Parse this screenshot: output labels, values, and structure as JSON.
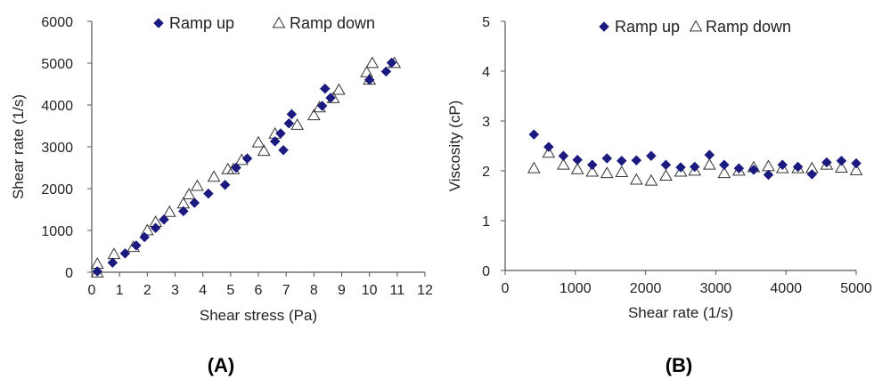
{
  "chart_data": [
    {
      "type": "scatter",
      "panel_label": "(A)",
      "xlabel": "Shear stress (Pa)",
      "ylabel": "Shear rate (1/s)",
      "xlim": [
        0,
        12
      ],
      "ylim": [
        0,
        6000
      ],
      "xticks": [
        "0",
        "1",
        "2",
        "3",
        "4",
        "5",
        "6",
        "7",
        "8",
        "9",
        "10",
        "11",
        "12"
      ],
      "yticks": [
        "0",
        "1000",
        "2000",
        "3000",
        "4000",
        "5000",
        "6000"
      ],
      "grid": false,
      "legend_position": "top",
      "series": [
        {
          "name": "Ramp up",
          "marker": "filled-diamond",
          "color": "#1a1a80",
          "x": [
            0.2,
            0.75,
            1.2,
            1.6,
            1.9,
            2.3,
            2.6,
            3.3,
            3.7,
            4.2,
            4.8,
            5.2,
            5.6,
            6.6,
            6.8,
            6.9,
            7.1,
            7.2,
            8.3,
            8.4,
            8.6,
            10.0,
            10.6,
            10.8
          ],
          "y": [
            20,
            230,
            450,
            640,
            840,
            1060,
            1260,
            1460,
            1660,
            1880,
            2090,
            2500,
            2720,
            3130,
            3320,
            2920,
            3560,
            3780,
            3980,
            4390,
            4170,
            4600,
            4800,
            5010
          ]
        },
        {
          "name": "Ramp down",
          "marker": "open-triangle",
          "color": "#333333",
          "x": [
            0.2,
            0.2,
            0.8,
            1.5,
            2.0,
            2.3,
            2.8,
            3.3,
            3.5,
            3.8,
            4.4,
            4.9,
            5.1,
            5.4,
            6.0,
            6.2,
            6.6,
            7.4,
            8.0,
            8.2,
            8.7,
            8.9,
            9.9,
            10.0,
            10.1,
            10.9
          ],
          "y": [
            200,
            -10,
            430,
            600,
            1000,
            1200,
            1440,
            1640,
            1860,
            2060,
            2280,
            2460,
            2460,
            2680,
            3100,
            2900,
            3310,
            3520,
            3750,
            3940,
            4160,
            4360,
            4780,
            4600,
            5000,
            5000
          ]
        }
      ]
    },
    {
      "type": "scatter",
      "panel_label": "(B)",
      "xlabel": "Shear rate (1/s)",
      "ylabel": "Viscosity (cP)",
      "xlim": [
        0,
        5000
      ],
      "ylim": [
        0,
        5
      ],
      "xticks": [
        "0",
        "1000",
        "2000",
        "3000",
        "4000",
        "5000"
      ],
      "yticks": [
        "0",
        "1",
        "2",
        "3",
        "4",
        "5"
      ],
      "grid": false,
      "legend_position": "top",
      "series": [
        {
          "name": "Ramp up",
          "marker": "filled-diamond",
          "color": "#1a1a80",
          "x": [
            410,
            620,
            830,
            1030,
            1240,
            1450,
            1660,
            1870,
            2080,
            2290,
            2500,
            2700,
            2910,
            3120,
            3330,
            3540,
            3750,
            3950,
            4170,
            4370,
            4580,
            4790,
            5000
          ],
          "y": [
            2.73,
            2.48,
            2.3,
            2.22,
            2.12,
            2.25,
            2.2,
            2.21,
            2.3,
            2.12,
            2.07,
            2.08,
            2.32,
            2.12,
            2.05,
            2.02,
            1.92,
            2.12,
            2.08,
            1.93,
            2.17,
            2.2,
            2.15
          ]
        },
        {
          "name": "Ramp down",
          "marker": "open-triangle",
          "color": "#333333",
          "x": [
            410,
            620,
            830,
            1030,
            1240,
            1450,
            1660,
            1870,
            2080,
            2290,
            2500,
            2700,
            2910,
            3120,
            3330,
            3540,
            3750,
            3950,
            4170,
            4370,
            4580,
            4790,
            5000
          ],
          "y": [
            2.05,
            2.36,
            2.12,
            2.03,
            1.98,
            1.95,
            1.97,
            1.82,
            1.8,
            1.9,
            1.98,
            2.0,
            2.12,
            1.95,
            2.0,
            2.07,
            2.09,
            2.05,
            2.05,
            2.05,
            2.12,
            2.06,
            2.01
          ]
        }
      ]
    }
  ]
}
